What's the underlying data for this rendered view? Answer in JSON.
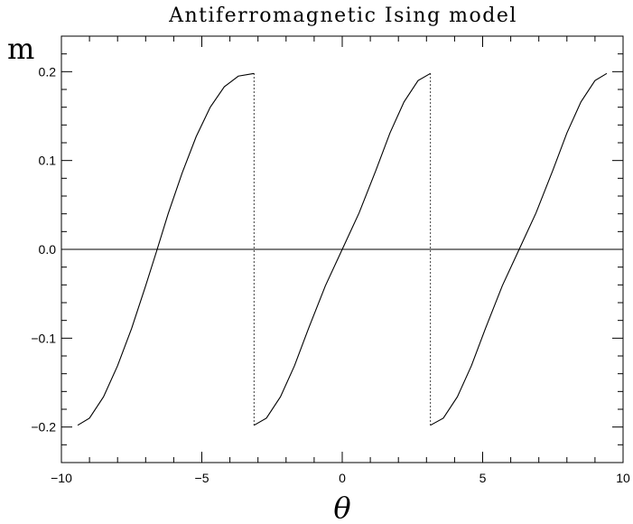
{
  "chart_data": {
    "type": "line",
    "title": "Antiferromagnetic Ising model",
    "xlabel": "θ",
    "ylabel": "m",
    "xlim": [
      -10,
      10
    ],
    "ylim": [
      -0.24,
      0.24
    ],
    "x_ticks": [
      -10,
      -5,
      0,
      5,
      10
    ],
    "x_tick_labels": [
      "−10",
      "−5",
      "0",
      "5",
      "10"
    ],
    "y_ticks": [
      -0.2,
      -0.1,
      0.0,
      0.1,
      0.2
    ],
    "y_tick_labels": [
      "−0.2",
      "−0.1",
      "0.0",
      "0.1",
      "0.2"
    ],
    "grid": false,
    "legend": "none",
    "series": [
      {
        "style": "solid",
        "segments": [
          [
            [
              -9.42,
              -0.198
            ],
            [
              -9.0,
              -0.19
            ],
            [
              -8.5,
              -0.166
            ],
            [
              -8.0,
              -0.131
            ],
            [
              -7.5,
              -0.089
            ],
            [
              -7.0,
              -0.041
            ],
            [
              -6.6,
              -0.001
            ],
            [
              -6.2,
              0.04
            ],
            [
              -5.7,
              0.086
            ],
            [
              -5.2,
              0.127
            ],
            [
              -4.7,
              0.16
            ],
            [
              -4.2,
              0.183
            ],
            [
              -3.7,
              0.195
            ],
            [
              -3.14,
              0.198
            ]
          ],
          [
            [
              -3.14,
              -0.198
            ],
            [
              -2.7,
              -0.19
            ],
            [
              -2.2,
              -0.166
            ],
            [
              -1.7,
              -0.131
            ],
            [
              -1.2,
              -0.089
            ],
            [
              -0.6,
              -0.041
            ],
            [
              0.0,
              0.0
            ],
            [
              0.6,
              0.041
            ],
            [
              1.2,
              0.089
            ],
            [
              1.7,
              0.131
            ],
            [
              2.2,
              0.166
            ],
            [
              2.7,
              0.19
            ],
            [
              3.14,
              0.198
            ]
          ],
          [
            [
              3.14,
              -0.198
            ],
            [
              3.6,
              -0.19
            ],
            [
              4.1,
              -0.166
            ],
            [
              4.6,
              -0.131
            ],
            [
              5.1,
              -0.089
            ],
            [
              5.7,
              -0.041
            ],
            [
              6.3,
              0.0
            ],
            [
              6.9,
              0.041
            ],
            [
              7.5,
              0.089
            ],
            [
              8.0,
              0.131
            ],
            [
              8.5,
              0.166
            ],
            [
              9.0,
              0.19
            ],
            [
              9.42,
              0.198
            ]
          ]
        ]
      },
      {
        "style": "dotted",
        "segments": [
          [
            [
              -3.14,
              -0.198
            ],
            [
              -3.14,
              0.198
            ]
          ],
          [
            [
              3.14,
              -0.198
            ],
            [
              3.14,
              0.198
            ]
          ]
        ]
      },
      {
        "style": "solid",
        "segments": [
          [
            [
              -10,
              0.0
            ],
            [
              10,
              0.0
            ]
          ]
        ]
      }
    ]
  }
}
